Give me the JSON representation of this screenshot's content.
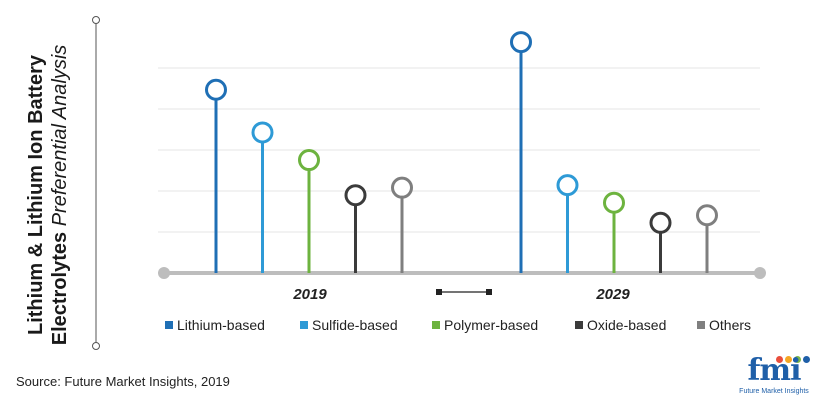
{
  "title": {
    "line1": "Lithium & Lithium Ion Battery",
    "line2_bold": "Electrolytes",
    "line2_italic": "Preferential Analysis"
  },
  "source": "Source: Future Market Insights, 2019",
  "logo": {
    "text": "fmi",
    "subtitle": "Future Market Insights",
    "colors": [
      "#e94e3c",
      "#f5a623",
      "#7ab648",
      "#1f5fa8"
    ]
  },
  "chart_data": {
    "type": "lollipop",
    "categories": [
      "2019",
      "2029"
    ],
    "series": [
      {
        "name": "Lithium-based",
        "color": "#1f6fb5",
        "values": [
          73,
          92
        ]
      },
      {
        "name": "Sulfide-based",
        "color": "#2e9ad6",
        "values": [
          56,
          35
        ]
      },
      {
        "name": "Polymer-based",
        "color": "#6db33f",
        "values": [
          45,
          28
        ]
      },
      {
        "name": "Oxide-based",
        "color": "#3b3b3b",
        "values": [
          31,
          20
        ]
      },
      {
        "name": "Others",
        "color": "#7f7f7f",
        "values": [
          34,
          23
        ]
      }
    ],
    "ylim": [
      0,
      100
    ],
    "grid": true,
    "legend": "bottom"
  }
}
